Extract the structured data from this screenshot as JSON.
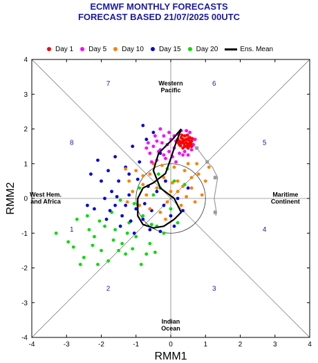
{
  "title_line1": "ECMWF MONTHLY FORECASTS",
  "title_line2": "FORECAST  BASED 21/07/2025 00UTC",
  "chart_data": {
    "type": "scatter",
    "xlabel": "RMM1",
    "ylabel": "RMM2",
    "xlim": [
      -4,
      4
    ],
    "ylim": [
      -4,
      4
    ],
    "xticks": [
      "-4",
      "-3",
      "-2",
      "-1",
      "0",
      "1",
      "2",
      "3",
      "4"
    ],
    "yticks": [
      "-4",
      "-3",
      "-2",
      "-1",
      "0",
      "1",
      "2",
      "3",
      "4"
    ],
    "legend_position": "top",
    "legend": [
      {
        "label": "Day 1",
        "color": "#ff0000",
        "kind": "dot"
      },
      {
        "label": "Day 5",
        "color": "#ff00ff",
        "kind": "dot"
      },
      {
        "label": "Day 10",
        "color": "#ff8000",
        "kind": "dot"
      },
      {
        "label": "Day 15",
        "color": "#0000dd",
        "kind": "dot"
      },
      {
        "label": "Day 20",
        "color": "#00dd00",
        "kind": "dot"
      },
      {
        "label": "Ens. Mean",
        "color": "#000000",
        "kind": "line"
      }
    ],
    "phases": [
      {
        "label": "1",
        "x": -2.85,
        "y": -0.9
      },
      {
        "label": "2",
        "x": -1.8,
        "y": -2.6
      },
      {
        "label": "3",
        "x": 1.25,
        "y": -2.6
      },
      {
        "label": "4",
        "x": 2.7,
        "y": -0.9
      },
      {
        "label": "5",
        "x": 2.7,
        "y": 1.6
      },
      {
        "label": "6",
        "x": 1.25,
        "y": 3.3
      },
      {
        "label": "7",
        "x": -1.8,
        "y": 3.3
      },
      {
        "label": "8",
        "x": -2.85,
        "y": 1.6
      }
    ],
    "regions": [
      {
        "lines": [
          "Western",
          "Pacific"
        ],
        "x": 0.0,
        "y": 3.25
      },
      {
        "lines": [
          "Indian",
          "Ocean"
        ],
        "x": 0.0,
        "y": -3.6
      },
      {
        "lines": [
          "West Hem.",
          "and Africa"
        ],
        "x": -3.6,
        "y": 0.05
      },
      {
        "lines": [
          "Maritime",
          "Continent"
        ],
        "x": 3.3,
        "y": 0.05
      }
    ],
    "analysis_path": [
      [
        1.3,
        -0.5
      ],
      [
        1.3,
        -0.3
      ],
      [
        1.25,
        0
      ],
      [
        1.3,
        0.3
      ],
      [
        1.35,
        0.6
      ],
      [
        1.2,
        0.9
      ],
      [
        1.05,
        1.05
      ],
      [
        0.9,
        1.25
      ],
      [
        0.75,
        1.45
      ],
      [
        0.55,
        1.55
      ]
    ],
    "analysis_markers": [
      [
        1.28,
        -0.4
      ],
      [
        1.28,
        0.6
      ],
      [
        1.05,
        1.05
      ],
      [
        0.75,
        1.45
      ]
    ],
    "ens_mean": [
      [
        0.3,
        1.98
      ],
      [
        0.15,
        1.6
      ],
      [
        0.0,
        1.15
      ],
      [
        -0.15,
        0.72
      ],
      [
        -0.5,
        0.45
      ],
      [
        -0.8,
        0.3
      ],
      [
        -0.95,
        0.0
      ],
      [
        -0.95,
        -0.5
      ],
      [
        -0.8,
        -0.75
      ],
      [
        -0.5,
        -0.85
      ],
      [
        -0.2,
        -0.8
      ],
      [
        0.1,
        -0.6
      ],
      [
        0.3,
        -0.4
      ],
      [
        0.1,
        0.0
      ],
      [
        -0.3,
        0.3
      ],
      [
        -0.5,
        0.8
      ],
      [
        -0.35,
        1.3
      ],
      [
        0.05,
        1.7
      ],
      [
        0.3,
        2.0
      ]
    ],
    "series": [
      {
        "name": "Day 1",
        "color": "#ff0000",
        "points": [
          [
            0.25,
            1.55
          ],
          [
            0.3,
            1.6
          ],
          [
            0.35,
            1.65
          ],
          [
            0.4,
            1.5
          ],
          [
            0.45,
            1.7
          ],
          [
            0.5,
            1.55
          ],
          [
            0.55,
            1.6
          ],
          [
            0.3,
            1.75
          ],
          [
            0.4,
            1.8
          ],
          [
            0.5,
            1.72
          ],
          [
            0.6,
            1.5
          ],
          [
            0.2,
            1.7
          ],
          [
            0.35,
            1.45
          ],
          [
            0.45,
            1.6
          ],
          [
            0.55,
            1.75
          ],
          [
            0.25,
            1.65
          ],
          [
            0.5,
            1.45
          ],
          [
            0.6,
            1.65
          ],
          [
            0.38,
            1.58
          ],
          [
            0.42,
            1.68
          ],
          [
            0.28,
            1.52
          ],
          [
            0.58,
            1.58
          ],
          [
            0.48,
            1.82
          ],
          [
            0.32,
            1.82
          ],
          [
            0.52,
            1.68
          ],
          [
            0.62,
            1.72
          ],
          [
            0.22,
            1.6
          ],
          [
            0.45,
            1.5
          ],
          [
            0.35,
            1.7
          ],
          [
            0.55,
            1.52
          ]
        ]
      },
      {
        "name": "Day 5",
        "color": "#ff00ff",
        "points": [
          [
            -0.6,
            1.3
          ],
          [
            -0.5,
            1.5
          ],
          [
            -0.4,
            1.65
          ],
          [
            -0.3,
            1.4
          ],
          [
            -0.2,
            1.8
          ],
          [
            -0.1,
            1.55
          ],
          [
            0,
            1.7
          ],
          [
            0.1,
            1.45
          ],
          [
            0.2,
            1.85
          ],
          [
            0.3,
            1.95
          ],
          [
            0.4,
            1.35
          ],
          [
            0.5,
            1.25
          ],
          [
            0.6,
            1.4
          ],
          [
            0.7,
            1.7
          ],
          [
            0.05,
            1.2
          ],
          [
            -0.15,
            1.15
          ],
          [
            -0.45,
            1.8
          ],
          [
            -0.55,
            1.05
          ],
          [
            -0.25,
            1.6
          ],
          [
            0.15,
            1.65
          ],
          [
            0.25,
            1.3
          ],
          [
            -0.35,
            1.35
          ],
          [
            -0.05,
            1.9
          ],
          [
            0.35,
            1.25
          ],
          [
            0.65,
            1.55
          ],
          [
            -0.65,
            1.6
          ],
          [
            -0.7,
            1.45
          ],
          [
            0.45,
            1.95
          ],
          [
            -0.3,
            2.0
          ],
          [
            -0.05,
            1.35
          ],
          [
            0.1,
            1.8
          ],
          [
            -0.2,
            1.25
          ],
          [
            0.15,
            1.05
          ],
          [
            -0.4,
            1.1
          ],
          [
            0.55,
            1.9
          ]
        ]
      },
      {
        "name": "Day 10",
        "color": "#ff8000",
        "points": [
          [
            -1.3,
            0.85
          ],
          [
            -1.2,
            0.5
          ],
          [
            -1.0,
            0.8
          ],
          [
            -0.8,
            0.4
          ],
          [
            -0.6,
            0.7
          ],
          [
            -0.4,
            0.3
          ],
          [
            -0.2,
            0.6
          ],
          [
            0,
            0.2
          ],
          [
            0.2,
            0.5
          ],
          [
            0.4,
            0.8
          ],
          [
            0.6,
            0.3
          ],
          [
            0.8,
            0.7
          ],
          [
            1.0,
            0.5
          ],
          [
            0.3,
            -0.2
          ],
          [
            -0.3,
            -0.4
          ],
          [
            -0.7,
            0.1
          ],
          [
            -1.1,
            0.2
          ],
          [
            0.9,
            0.1
          ],
          [
            0.5,
            1.0
          ],
          [
            -0.5,
            1.0
          ],
          [
            0.1,
            0.9
          ],
          [
            -0.9,
            -0.2
          ],
          [
            0.7,
            -0.1
          ],
          [
            1.1,
            0.9
          ],
          [
            -0.1,
            -0.1
          ],
          [
            0.35,
            0.35
          ],
          [
            -0.25,
            0.95
          ],
          [
            0.75,
            1.0
          ],
          [
            -1.25,
            -0.1
          ],
          [
            0.45,
            0.05
          ],
          [
            -0.15,
            -0.6
          ],
          [
            -0.6,
            -0.3
          ],
          [
            0.2,
            0.2
          ],
          [
            0.6,
            0.6
          ],
          [
            -0.8,
            0.65
          ],
          [
            0.05,
            0.45
          ]
        ]
      },
      {
        "name": "Day 15",
        "color": "#0000dd",
        "points": [
          [
            -2.1,
            1.1
          ],
          [
            -1.8,
            0.8
          ],
          [
            -1.5,
            0.5
          ],
          [
            -1.6,
            -0.2
          ],
          [
            -1.9,
            0
          ],
          [
            -2.2,
            -0.3
          ],
          [
            -1.4,
            -0.5
          ],
          [
            -1.2,
            0.1
          ],
          [
            -1.0,
            -0.3
          ],
          [
            -0.8,
            -0.6
          ],
          [
            -0.6,
            -0.9
          ],
          [
            -0.4,
            0.2
          ],
          [
            -0.2,
            -0.2
          ],
          [
            0,
            -0.5
          ],
          [
            0.2,
            0
          ],
          [
            -0.3,
            1.3
          ],
          [
            -0.7,
            1.7
          ],
          [
            -0.8,
            2.1
          ],
          [
            -1.1,
            1.5
          ],
          [
            -1.7,
            0.2
          ],
          [
            -1.3,
            0.9
          ],
          [
            -0.95,
            0.55
          ],
          [
            -2.0,
            0.5
          ],
          [
            -1.75,
            -0.35
          ],
          [
            -1.45,
            -0.8
          ],
          [
            -1.15,
            -0.65
          ],
          [
            -0.55,
            -0.35
          ],
          [
            0.1,
            -0.8
          ],
          [
            0.35,
            -0.35
          ],
          [
            -2.4,
            -0.2
          ],
          [
            -1.6,
            1.2
          ],
          [
            -1.3,
            -0.2
          ],
          [
            -0.65,
            0.35
          ],
          [
            -0.9,
            1.05
          ],
          [
            -1.55,
            0.05
          ],
          [
            -2.3,
            0.7
          ],
          [
            -0.15,
            0.5
          ],
          [
            -1.05,
            -1.0
          ],
          [
            -0.3,
            -0.95
          ],
          [
            -1.85,
            -0.6
          ],
          [
            -0.5,
            1.9
          ],
          [
            -1.2,
            0.7
          ],
          [
            -0.75,
            -0.15
          ],
          [
            0.5,
            0.3
          ]
        ]
      },
      {
        "name": "Day 20",
        "color": "#00dd00",
        "points": [
          [
            -3.3,
            -1.0
          ],
          [
            -2.8,
            -1.4
          ],
          [
            -2.5,
            -1.7
          ],
          [
            -2.7,
            -0.6
          ],
          [
            -2.4,
            -0.5
          ],
          [
            -2.2,
            -1.1
          ],
          [
            -2.0,
            -1.5
          ],
          [
            -1.8,
            -1.8
          ],
          [
            -1.6,
            -0.9
          ],
          [
            -1.4,
            -1.3
          ],
          [
            -1.2,
            -0.7
          ],
          [
            -1.0,
            -1.1
          ],
          [
            -0.8,
            -0.5
          ],
          [
            -0.6,
            -1.3
          ],
          [
            -0.4,
            -0.8
          ],
          [
            -0.2,
            -1.0
          ],
          [
            0,
            -0.3
          ],
          [
            0.2,
            -0.7
          ],
          [
            0.4,
            0.4
          ],
          [
            -0.5,
            0.1
          ],
          [
            -0.9,
            0.3
          ],
          [
            -1.7,
            -0.4
          ],
          [
            -2.6,
            -1.9
          ],
          [
            -2.1,
            -1.9
          ],
          [
            -1.3,
            -1.6
          ],
          [
            -0.7,
            -1.6
          ],
          [
            -1.5,
            -1.5
          ],
          [
            -0.3,
            0.3
          ],
          [
            -1.05,
            -0.15
          ],
          [
            -2.95,
            -1.25
          ],
          [
            -1.9,
            -0.8
          ],
          [
            -1.1,
            -1.45
          ],
          [
            -2.35,
            -0.9
          ],
          [
            0.1,
            0.5
          ],
          [
            -0.1,
            0.85
          ],
          [
            -0.35,
            0.7
          ],
          [
            -1.65,
            -1.2
          ],
          [
            -0.85,
            -1.9
          ],
          [
            -2.25,
            -1.35
          ],
          [
            -1.45,
            -0.05
          ],
          [
            -0.55,
            -0.75
          ],
          [
            -1.25,
            -1.0
          ],
          [
            -0.45,
            -1.55
          ],
          [
            -2.05,
            -0.65
          ]
        ]
      }
    ]
  }
}
